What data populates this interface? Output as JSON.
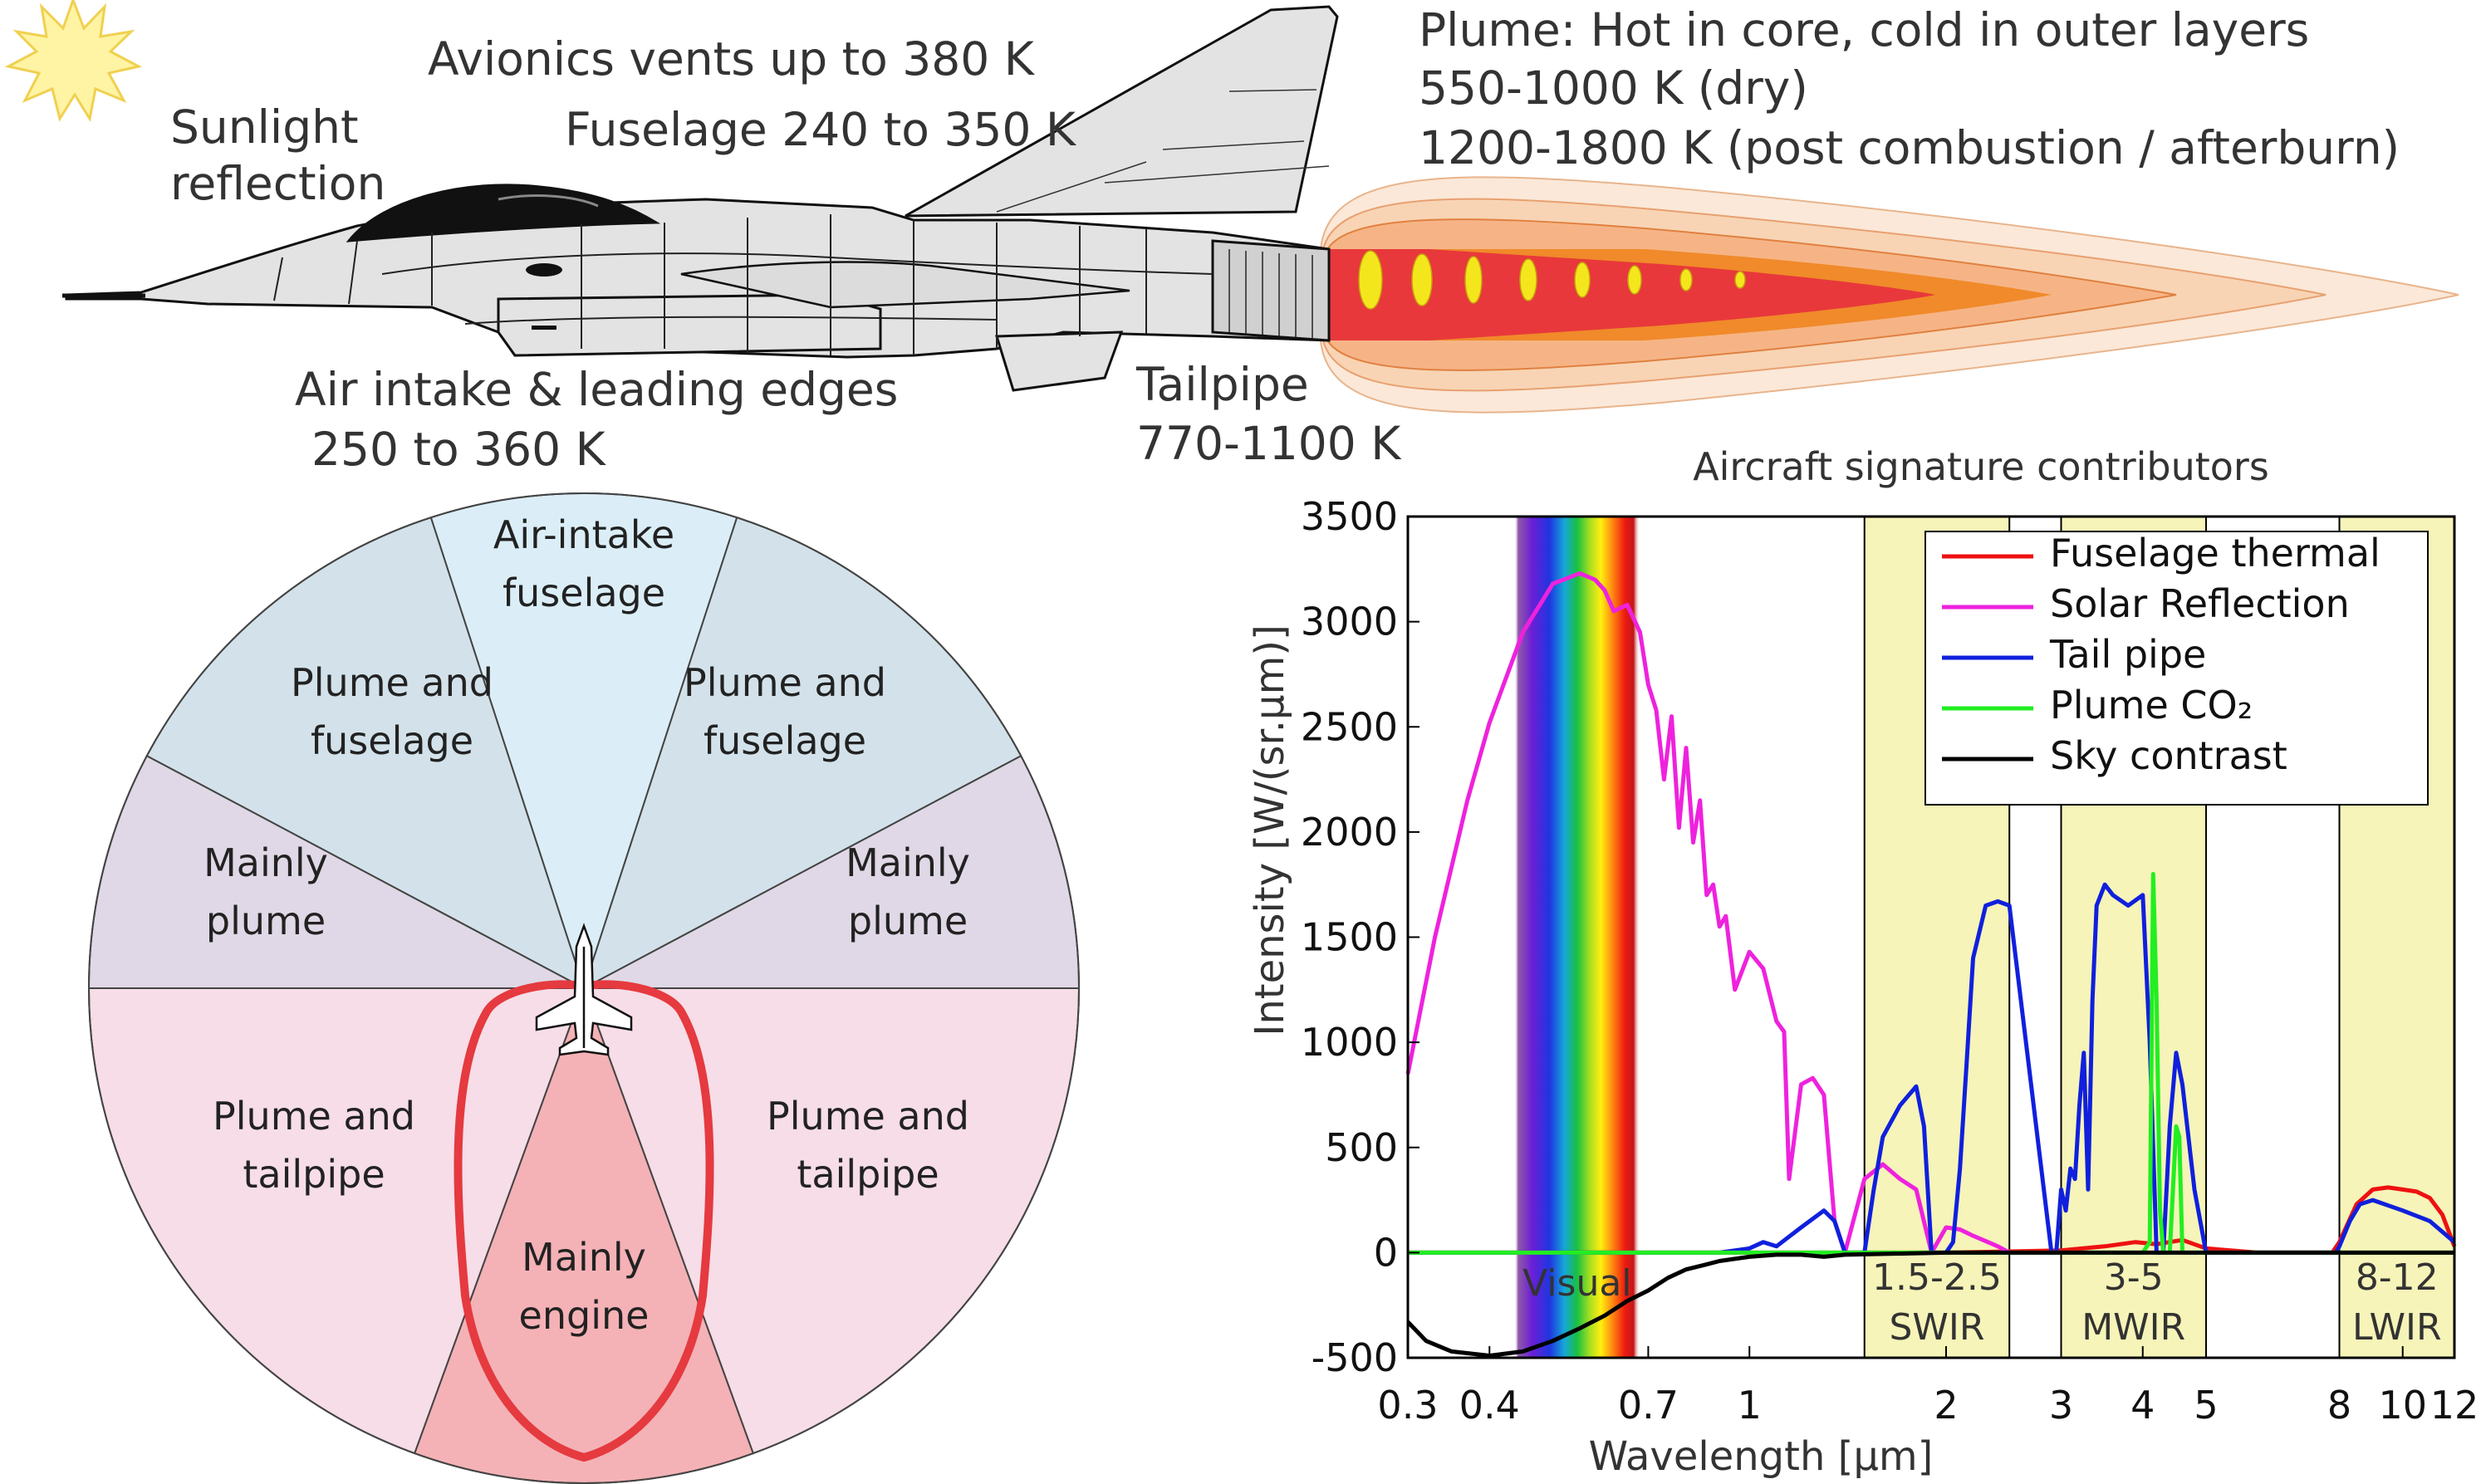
{
  "aircraft": {
    "sunlight_label": [
      "Sunlight",
      "reflection"
    ],
    "avionics_label": "Avionics vents up to 380 K",
    "fuselage_label": "Fuselage 240 to 350 K",
    "air_intake_label": [
      "Air intake & leading edges",
      "250 to 360 K"
    ],
    "tailpipe_label": [
      "Tailpipe",
      "770-1100 K"
    ],
    "plume_label": [
      "Plume: Hot in core, cold in outer layers",
      "550-1000 K (dry)",
      "1200-1800 K (post combustion / afterburn)"
    ],
    "colors": {
      "fuselage": "#e3e3e3",
      "canopy": "#111111",
      "plume_core": "#e8383b",
      "plume_mid": "#f08a2a",
      "plume_outer": "#f9dcc4",
      "shock_diamond": "#f4e61c",
      "sun": "#fff2a0"
    }
  },
  "polar_diagram": {
    "sectors": [
      {
        "label": [
          "Air-intake",
          "fuselage"
        ],
        "color": "#dbeef8"
      },
      {
        "label": [
          "Plume and",
          "fuselage"
        ],
        "color": "#d3e2ea"
      },
      {
        "label": [
          "Plume and",
          "fuselage"
        ],
        "color": "#d3e2ea"
      },
      {
        "label": [
          "Mainly",
          "plume"
        ],
        "color": "#e0d8e6"
      },
      {
        "label": [
          "Mainly",
          "plume"
        ],
        "color": "#e0d8e6"
      },
      {
        "label": [
          "Plume and",
          "tailpipe"
        ],
        "color": "#f6dde8"
      },
      {
        "label": [
          "Plume and",
          "tailpipe"
        ],
        "color": "#f6dde8"
      },
      {
        "label": [
          "Mainly",
          "engine"
        ],
        "color": "#f4b2b6"
      }
    ],
    "signature_color": "#e53a3f"
  },
  "chart_data": {
    "type": "line",
    "title": "Aircraft signature contributors",
    "xlabel": "Wavelength [µm]",
    "ylabel": "Intensity [W/(sr.µm)]",
    "x_scale": "log",
    "xlim": [
      0.3,
      12
    ],
    "ylim": [
      -500,
      3500
    ],
    "yticks": [
      -500,
      0,
      500,
      1000,
      1500,
      2000,
      2500,
      3000,
      3500
    ],
    "xticks": [
      0.3,
      0.4,
      0.7,
      1,
      2,
      3,
      4,
      5,
      8,
      10,
      12
    ],
    "xtick_labels": [
      "0.3",
      "0.4",
      "0.7",
      "1",
      "2",
      "3",
      "4",
      "5",
      "8",
      "10",
      "12"
    ],
    "legend_position": "top-right",
    "bands": [
      {
        "range": [
          1.5,
          2.5
        ],
        "label": [
          "1.5-2.5",
          "SWIR"
        ]
      },
      {
        "range": [
          3,
          5
        ],
        "label": [
          "3-5",
          "MWIR"
        ]
      },
      {
        "range": [
          8,
          12
        ],
        "label": [
          "8-12",
          "LWIR"
        ]
      }
    ],
    "visual_band": {
      "range": [
        0.4,
        0.7
      ],
      "label": "Visual"
    },
    "series": [
      {
        "name": "Fuselage thermal",
        "color": "#ee1111",
        "x": [
          0.3,
          1.0,
          2.0,
          3.0,
          3.5,
          3.9,
          4.2,
          4.6,
          5.0,
          6.0,
          7.0,
          7.8,
          8.0,
          8.5,
          9.0,
          9.5,
          10.0,
          10.5,
          11.0,
          11.5,
          12.0
        ],
        "y": [
          0,
          0,
          0,
          10,
          30,
          50,
          40,
          60,
          20,
          0,
          0,
          0,
          50,
          230,
          300,
          310,
          300,
          290,
          260,
          180,
          30
        ]
      },
      {
        "name": "Solar Reflection",
        "color": "#ee22dd",
        "x": [
          0.3,
          0.33,
          0.37,
          0.4,
          0.45,
          0.5,
          0.55,
          0.58,
          0.6,
          0.62,
          0.65,
          0.68,
          0.7,
          0.72,
          0.74,
          0.76,
          0.78,
          0.8,
          0.82,
          0.84,
          0.86,
          0.88,
          0.9,
          0.92,
          0.95,
          1.0,
          1.05,
          1.1,
          1.13,
          1.15,
          1.2,
          1.25,
          1.3,
          1.35,
          1.4,
          1.5,
          1.6,
          1.7,
          1.8,
          1.9,
          2.0,
          2.1,
          2.2,
          2.4,
          2.5
        ],
        "y": [
          850,
          1500,
          2150,
          2520,
          2950,
          3180,
          3230,
          3200,
          3150,
          3050,
          3080,
          2950,
          2700,
          2580,
          2250,
          2550,
          2020,
          2400,
          1950,
          2150,
          1700,
          1750,
          1550,
          1600,
          1250,
          1430,
          1350,
          1100,
          1050,
          350,
          800,
          830,
          750,
          150,
          0,
          350,
          420,
          350,
          300,
          0,
          120,
          110,
          80,
          30,
          0
        ]
      },
      {
        "name": "Tail pipe",
        "color": "#1020dd",
        "x": [
          0.3,
          0.9,
          1.0,
          1.05,
          1.1,
          1.2,
          1.3,
          1.35,
          1.4,
          1.5,
          1.55,
          1.6,
          1.7,
          1.8,
          1.85,
          1.9,
          1.95,
          2.0,
          2.05,
          2.1,
          2.15,
          2.2,
          2.3,
          2.4,
          2.5,
          2.9,
          2.95,
          3.0,
          3.05,
          3.1,
          3.15,
          3.2,
          3.25,
          3.3,
          3.35,
          3.4,
          3.5,
          3.6,
          3.8,
          4.0,
          4.1,
          4.2,
          4.3,
          4.4,
          4.5,
          4.6,
          4.8,
          5.0,
          5.5,
          6.0,
          7.0,
          7.9,
          8.0,
          8.3,
          8.6,
          9.0,
          10.0,
          11.0,
          12.0
        ],
        "y": [
          0,
          0,
          20,
          50,
          30,
          120,
          200,
          150,
          0,
          0,
          300,
          550,
          700,
          790,
          600,
          0,
          0,
          0,
          50,
          400,
          900,
          1400,
          1650,
          1670,
          1650,
          0,
          0,
          300,
          200,
          400,
          350,
          700,
          950,
          300,
          1200,
          1650,
          1750,
          1700,
          1650,
          1700,
          1000,
          0,
          0,
          600,
          950,
          800,
          300,
          0,
          0,
          0,
          0,
          0,
          30,
          150,
          230,
          250,
          200,
          150,
          50
        ]
      },
      {
        "name": "Plume CO₂",
        "color": "#22ee22",
        "x": [
          0.3,
          4.0,
          4.1,
          4.15,
          4.2,
          4.25,
          4.3,
          4.4,
          4.5,
          4.55,
          4.6,
          4.7,
          12.0
        ],
        "y": [
          0,
          0,
          50,
          1800,
          1200,
          200,
          0,
          0,
          600,
          550,
          0,
          0,
          0
        ]
      },
      {
        "name": "Sky contrast",
        "color": "#000000",
        "x": [
          0.3,
          0.32,
          0.35,
          0.4,
          0.45,
          0.5,
          0.55,
          0.6,
          0.65,
          0.7,
          0.75,
          0.8,
          0.85,
          0.9,
          1.0,
          1.1,
          1.2,
          1.3,
          1.4,
          2.0,
          3.0,
          5.0,
          8.0,
          12.0
        ],
        "y": [
          -330,
          -420,
          -470,
          -490,
          -470,
          -420,
          -360,
          -300,
          -230,
          -180,
          -120,
          -80,
          -60,
          -40,
          -20,
          -10,
          -10,
          -20,
          -10,
          0,
          0,
          0,
          0,
          0
        ]
      }
    ]
  }
}
